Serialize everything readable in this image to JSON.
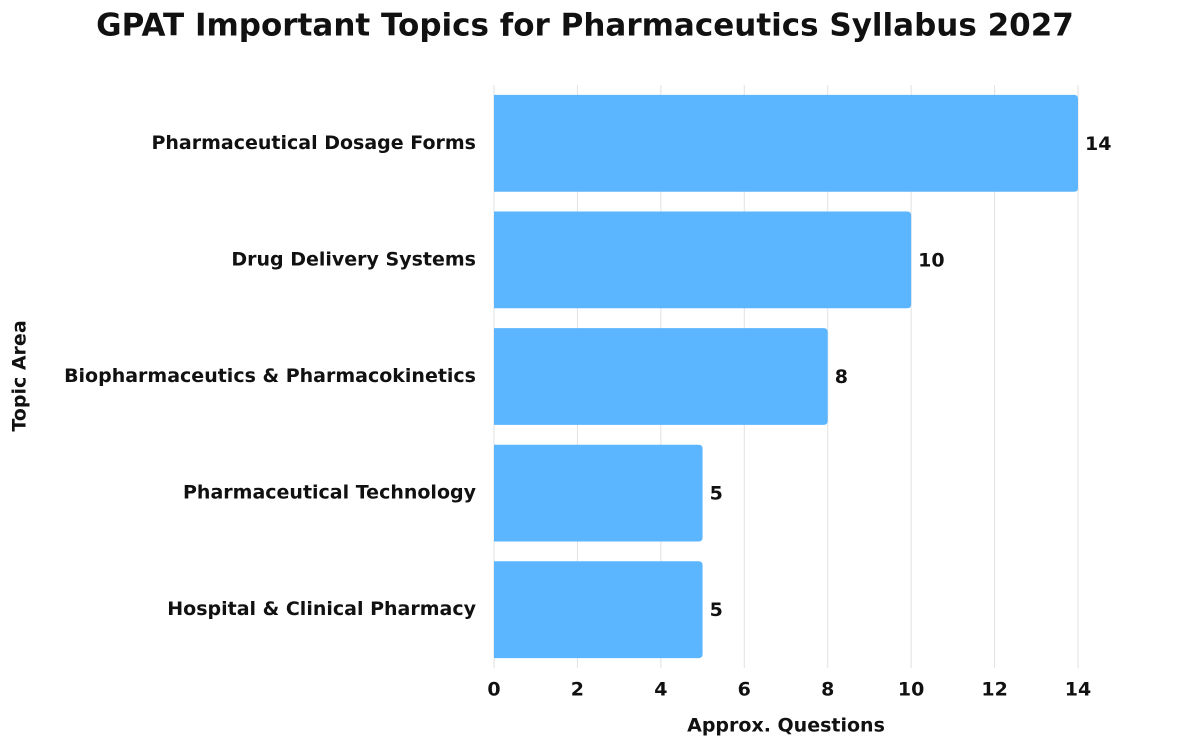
{
  "chart_data": {
    "type": "bar",
    "orientation": "horizontal",
    "title": "GPAT Important Topics for Pharmaceutics Syllabus 2027",
    "x_label": "Approx. Questions",
    "y_label": "Topic Area",
    "categories": [
      "Pharmaceutical Dosage Forms",
      "Drug Delivery Systems",
      "Biopharmaceutics & Pharmacokinetics",
      "Pharmaceutical Technology",
      "Hospital & Clinical Pharmacy"
    ],
    "values": [
      14,
      10,
      8,
      5,
      5
    ],
    "color": "#5cb5ff",
    "xlim": [
      0,
      14
    ],
    "xticks": [
      0,
      2,
      4,
      6,
      8,
      10,
      12,
      14
    ],
    "grid": true
  }
}
